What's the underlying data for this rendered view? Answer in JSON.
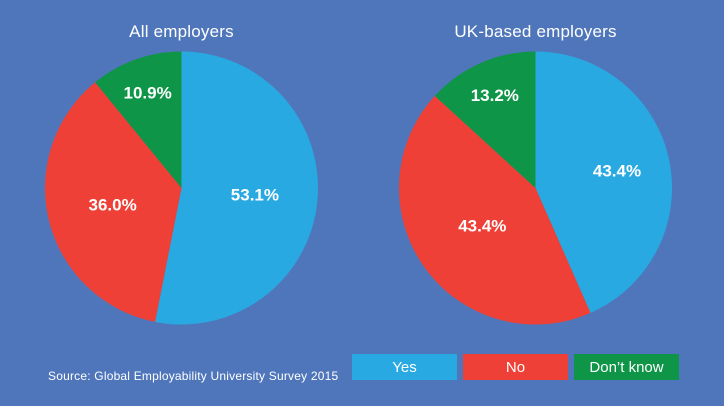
{
  "background_color": "#4f76ba",
  "text_color": "#ffffff",
  "chart_data": [
    {
      "type": "pie",
      "title": "All employers",
      "start_angle_deg": 0,
      "direction": "clockwise",
      "slices": [
        {
          "label": "Yes",
          "value": 53.1,
          "display": "53.1%",
          "color": "#29a9e1"
        },
        {
          "label": "No",
          "value": 36.0,
          "display": "36.0%",
          "color": "#ee4036"
        },
        {
          "label": "Don’t know",
          "value": 10.9,
          "display": "10.9%",
          "color": "#0e9548"
        }
      ]
    },
    {
      "type": "pie",
      "title": "UK-based employers",
      "start_angle_deg": 0,
      "direction": "clockwise",
      "slices": [
        {
          "label": "Yes",
          "value": 43.4,
          "display": "43.4%",
          "color": "#29a9e1"
        },
        {
          "label": "No",
          "value": 43.4,
          "display": "43.4%",
          "color": "#ee4036"
        },
        {
          "label": "Don’t know",
          "value": 13.2,
          "display": "13.2%",
          "color": "#0e9548"
        }
      ]
    }
  ],
  "legend": {
    "items": [
      {
        "label": "Yes",
        "color": "#29a9e1"
      },
      {
        "label": "No",
        "color": "#ee4036"
      },
      {
        "label": "Don’t know",
        "color": "#0e9548"
      }
    ]
  },
  "source": {
    "text": "Source: Global Employability University Survey 2015"
  }
}
